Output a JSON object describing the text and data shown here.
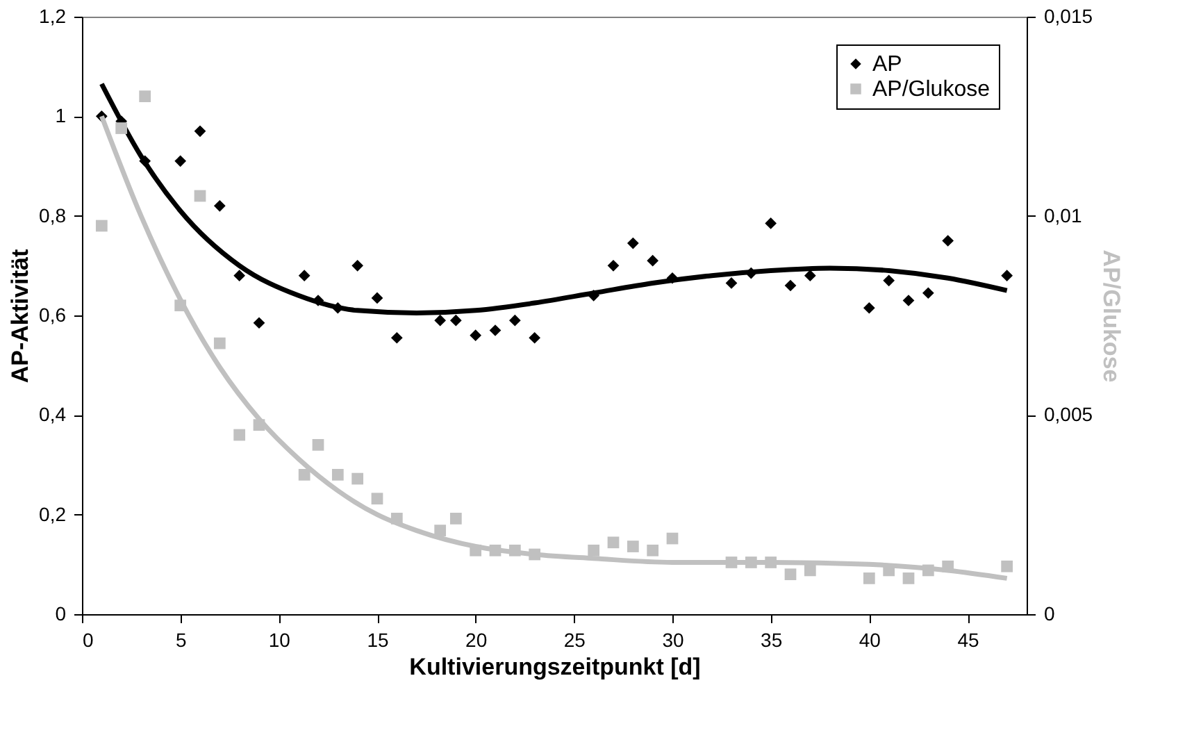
{
  "chart_data": {
    "type": "scatter",
    "xlabel": "Kultivierungszeitpunkt [d]",
    "ylabel": "AP-Aktivität",
    "y2label": "AP/Glukose",
    "xlim": [
      0,
      48
    ],
    "xticks": [
      0,
      5,
      10,
      15,
      20,
      25,
      30,
      35,
      40,
      45
    ],
    "ylim": [
      0,
      1.2
    ],
    "yticks": [
      0,
      {
        "value": 0.2,
        "label": "0,2"
      },
      {
        "value": 0.4,
        "label": "0,4"
      },
      {
        "value": 0.6,
        "label": "0,6"
      },
      {
        "value": 0.8,
        "label": "0,8"
      },
      1,
      {
        "value": 1.2,
        "label": "1,2"
      }
    ],
    "y2lim": [
      0,
      0.015
    ],
    "y2ticks": [
      0,
      {
        "value": 0.005,
        "label": "0,005"
      },
      {
        "value": 0.01,
        "label": "0,01"
      },
      {
        "value": 0.015,
        "label": "0,015"
      }
    ],
    "grid": false,
    "legend": "top right",
    "series": [
      {
        "name": "AP",
        "marker": "diamond",
        "color": "#000000",
        "x": [
          1,
          2,
          3.2,
          5,
          6,
          7,
          8,
          9,
          11.3,
          12,
          13,
          14,
          15,
          16,
          18.2,
          19,
          20,
          21,
          22,
          23,
          26,
          27,
          28,
          29,
          30,
          33,
          34,
          35,
          36,
          37,
          40,
          41,
          42,
          43,
          44,
          47
        ],
        "values": [
          1.0,
          0.99,
          0.91,
          0.91,
          0.97,
          0.82,
          0.68,
          0.585,
          0.68,
          0.63,
          0.615,
          0.7,
          0.635,
          0.555,
          0.59,
          0.59,
          0.56,
          0.57,
          0.59,
          0.555,
          0.64,
          0.7,
          0.745,
          0.71,
          0.675,
          0.665,
          0.685,
          0.785,
          0.66,
          0.68,
          0.615,
          0.67,
          0.63,
          0.645,
          0.75,
          0.68
        ]
      },
      {
        "name": "AP/Glukose",
        "marker": "square",
        "axis": "y2",
        "color": "#c0c0c0",
        "x": [
          1,
          2,
          3.2,
          5,
          6,
          7,
          8,
          9,
          11.3,
          12,
          13,
          14,
          15,
          16,
          18.2,
          19,
          20,
          21,
          22,
          23,
          26,
          27,
          28,
          29,
          30,
          33,
          34,
          35,
          36,
          37,
          40,
          41,
          42,
          43,
          44,
          47
        ],
        "values": [
          0.00975,
          0.0122,
          0.013,
          0.00775,
          0.0105,
          0.0068,
          0.0045,
          0.00475,
          0.0035,
          0.00425,
          0.0035,
          0.0034,
          0.0029,
          0.0024,
          0.0021,
          0.0024,
          0.0016,
          0.0016,
          0.0016,
          0.0015,
          0.0016,
          0.0018,
          0.0017,
          0.0016,
          0.0019,
          0.0013,
          0.0013,
          0.0013,
          0.001,
          0.0011,
          0.0009,
          0.0011,
          0.0009,
          0.0011,
          0.0012,
          0.0012
        ]
      },
      {
        "type": "line",
        "color": "#000000",
        "x": [
          1,
          3,
          5,
          8,
          11,
          14,
          17,
          20,
          23,
          26,
          29,
          32,
          35,
          38,
          41,
          44,
          47
        ],
        "values": [
          1.065,
          0.92,
          0.81,
          0.7,
          0.64,
          0.61,
          0.605,
          0.61,
          0.625,
          0.645,
          0.665,
          0.68,
          0.69,
          0.695,
          0.69,
          0.675,
          0.65
        ]
      },
      {
        "type": "line",
        "axis": "y2",
        "color": "#c0c0c0",
        "x": [
          1,
          3,
          5,
          7,
          9,
          11,
          13,
          15,
          17,
          20,
          23,
          26,
          30,
          35,
          40,
          44,
          47
        ],
        "values": [
          0.0125,
          0.01,
          0.0079,
          0.0062,
          0.0049,
          0.0039,
          0.0031,
          0.0025,
          0.0021,
          0.0017,
          0.0015,
          0.0014,
          0.0013,
          0.0013,
          0.00125,
          0.0011,
          0.0009
        ]
      }
    ]
  }
}
